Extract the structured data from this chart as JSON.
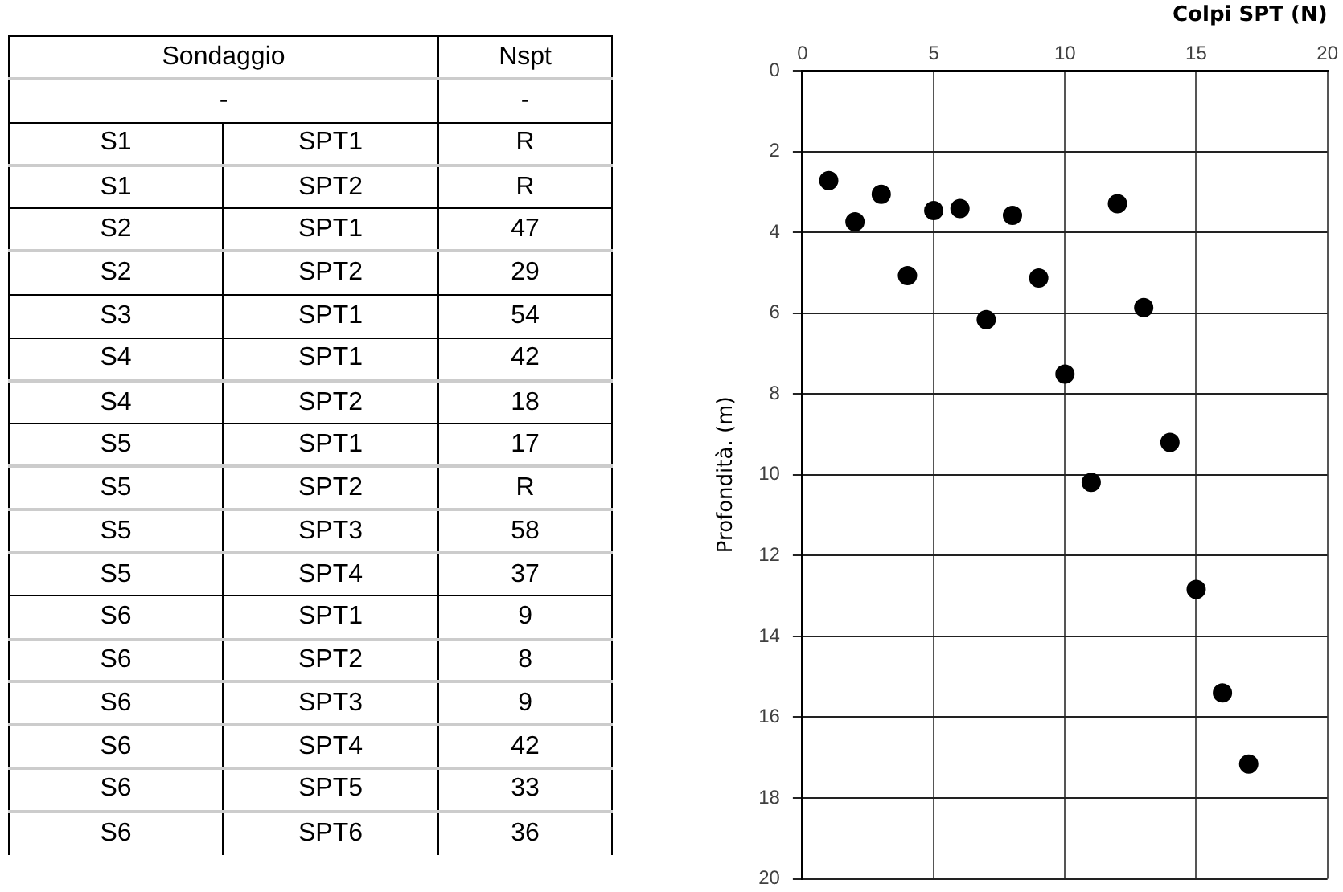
{
  "chart_data": [
    {
      "type": "other",
      "categories": [
        "Sondaggio",
        "Nspt"
      ],
      "cell_labels": [
        [
          "-",
          null,
          "-"
        ],
        [
          "S1",
          "SPT1",
          "R"
        ],
        [
          "S1",
          "SPT2",
          "R"
        ],
        [
          "S2",
          "SPT1",
          "47"
        ],
        [
          "S2",
          "SPT2",
          "29"
        ],
        [
          "S3",
          "SPT1",
          "54"
        ],
        [
          "S4",
          "SPT1",
          "42"
        ],
        [
          "S4",
          "SPT2",
          "18"
        ],
        [
          "S5",
          "SPT1",
          "17"
        ],
        [
          "S5",
          "SPT2",
          "R"
        ],
        [
          "S5",
          "SPT3",
          "58"
        ],
        [
          "S5",
          "SPT4",
          "37"
        ],
        [
          "S6",
          "SPT1",
          "9"
        ],
        [
          "S6",
          "SPT2",
          "8"
        ],
        [
          "S6",
          "SPT3",
          "9"
        ],
        [
          "S6",
          "SPT4",
          "42"
        ],
        [
          "S6",
          "SPT5",
          "33"
        ],
        [
          "S6",
          "SPT6",
          "36"
        ]
      ]
    },
    {
      "type": "scatter",
      "xlabel": "Colpi SPT (N)",
      "ylabel": "Profondità. (m)",
      "x": [
        1,
        2,
        3,
        4,
        5,
        6,
        7,
        8,
        9,
        10,
        11,
        12,
        13,
        14,
        15,
        16,
        17
      ],
      "values": [
        2.72,
        3.74,
        3.06,
        5.07,
        3.46,
        3.41,
        6.16,
        3.58,
        5.13,
        7.51,
        10.19,
        3.29,
        5.86,
        9.2,
        12.84,
        15.4,
        17.16
      ],
      "color": "#000000",
      "marker": "circle",
      "grid": true,
      "legend": false,
      "xlim": [
        0,
        20
      ],
      "xticks": [
        0,
        5,
        10,
        15,
        20
      ],
      "ylim": [
        20,
        0
      ],
      "yticks": [
        0,
        2,
        4,
        6,
        8,
        10,
        12,
        14,
        16,
        18,
        20
      ]
    }
  ]
}
